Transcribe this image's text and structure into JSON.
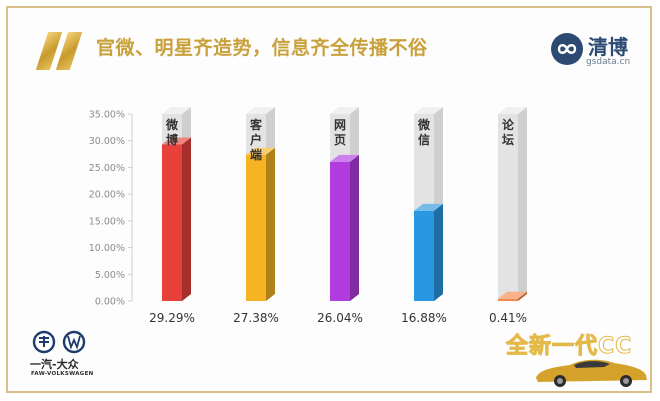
{
  "header": {
    "title": "官微、明星齐造势，信息齐全传播不俗"
  },
  "brand": {
    "name": "清博",
    "domain": "gsdata.cn"
  },
  "footer": {
    "brand": "一汽-大众",
    "brand_sub": "FAW-VOLKSWAGEN",
    "promo": "全新一代CC"
  },
  "colors": {
    "accent_gold": "#c9a13b",
    "frame": "#d9c089"
  },
  "chart_data": {
    "type": "bar",
    "categories": [
      "微博",
      "客户端",
      "网页",
      "微信",
      "论坛"
    ],
    "values": [
      29.29,
      27.38,
      26.04,
      16.88,
      0.41
    ],
    "value_labels": [
      "29.29%",
      "27.38%",
      "26.04%",
      "16.88%",
      "0.41%"
    ],
    "colors": [
      "#e8413c",
      "#f6b323",
      "#b13ddf",
      "#2a97e2",
      "#f4874b"
    ],
    "ylim": [
      0,
      35
    ],
    "yticks": [
      0,
      5,
      10,
      15,
      20,
      25,
      30,
      35
    ],
    "ytick_labels": [
      "0.00%",
      "5.00%",
      "10.00%",
      "15.00%",
      "20.00%",
      "25.00%",
      "30.00%",
      "35.00%"
    ],
    "grid": false,
    "legend": "none"
  }
}
